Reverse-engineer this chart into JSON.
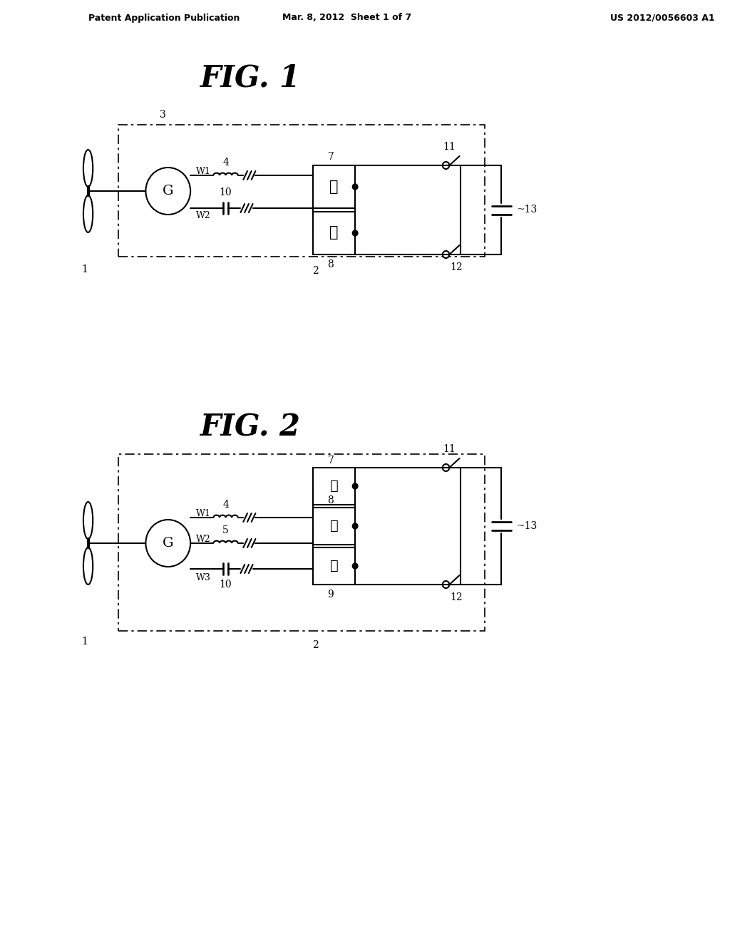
{
  "bg_color": "#ffffff",
  "header_left": "Patent Application Publication",
  "header_center": "Mar. 8, 2012  Sheet 1 of 7",
  "header_right": "US 2012/0056603 A1",
  "fig1_title": "FIG. 1",
  "fig2_title": "FIG. 2",
  "lw": 1.5
}
